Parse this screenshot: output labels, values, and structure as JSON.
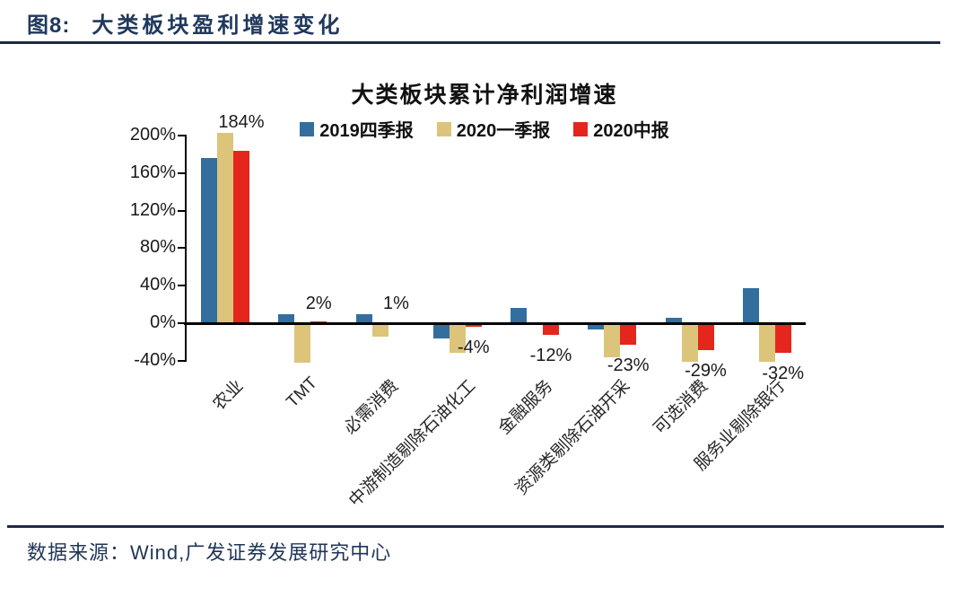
{
  "figure": {
    "label": "图8:",
    "title": "大类板块盈利增速变化"
  },
  "source": {
    "text": "数据来源：Wind,广发证券发展研究中心"
  },
  "colors": {
    "navy_text": "#20395C",
    "divider": "#1C2B45",
    "axis": "#000000",
    "bar_blue": "#336E9E",
    "bar_tan": "#DCC47B",
    "bar_red": "#E5261C"
  },
  "chart_data": {
    "type": "bar",
    "title": "大类板块累计净利润增速",
    "xlabel": "",
    "ylabel": "",
    "ylim": [
      -40,
      200
    ],
    "ytick_step": 40,
    "yticks": [
      "200%",
      "160%",
      "120%",
      "80%",
      "40%",
      "0%",
      "-40%"
    ],
    "grid": false,
    "legend_position": "top-center",
    "categories": [
      "农业",
      "TMT",
      "必需消费",
      "中游制造剔除石油化工",
      "金融服务",
      "资源类剔除石油开采",
      "可选消费",
      "服务业剔除银行"
    ],
    "series": [
      {
        "name": "2019四季报",
        "color": "#336E9E",
        "values": [
          176,
          10,
          10,
          -16,
          16,
          -7,
          6,
          37
        ]
      },
      {
        "name": "2020一季报",
        "color": "#DCC47B",
        "values": [
          203,
          -42,
          -14,
          -32,
          -2,
          -36,
          -41,
          -41
        ]
      },
      {
        "name": "2020中报",
        "color": "#E5261C",
        "values": [
          184,
          2,
          1,
          -4,
          -12,
          -23,
          -29,
          -32
        ]
      }
    ],
    "data_labels": {
      "series": "2020中报",
      "values": [
        "184%",
        "2%",
        "1%",
        "-4%",
        "-12%",
        "-23%",
        "-29%",
        "-32%"
      ]
    }
  }
}
